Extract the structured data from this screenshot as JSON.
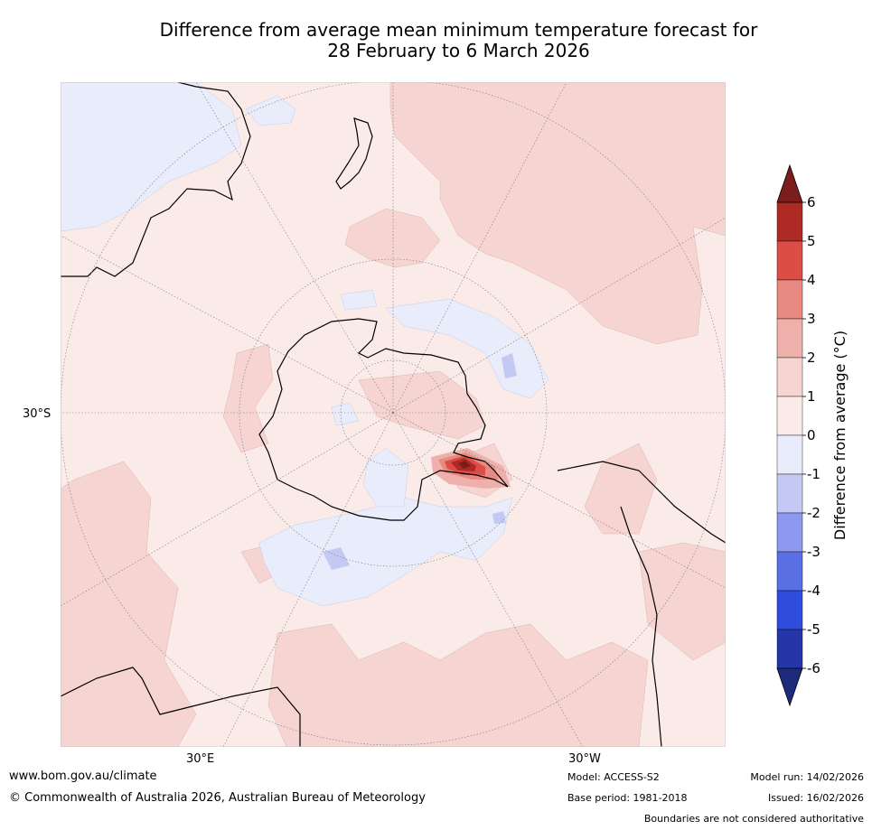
{
  "header": {
    "title_line1": "Difference from average mean minimum temperature forecast for",
    "title_line2": "28 February to 6 March 2026"
  },
  "map": {
    "projection": "south-polar-stereographic",
    "lat_label": "30°S",
    "lon_label_left": "30°E",
    "lon_label_right": "30°W",
    "colors": {
      "bin_0_1": "#fbebe8",
      "bin_1_2": "#f5d4d1",
      "bin_2_3": "#eeb0aa",
      "bin_3_4": "#e88a82",
      "bin_4_5": "#dc4e45",
      "bin_5_6": "#ad2a25",
      "bin_gt6": "#7b1d1b",
      "bin_m1_0": "#e8ecfb",
      "bin_m2_m1": "#c3c9f3",
      "land": "#000000",
      "graticule": "#888888"
    }
  },
  "colorbar": {
    "label": "Difference from average (°C)",
    "ticks": [
      "6",
      "5",
      "4",
      "3",
      "2",
      "1",
      "0",
      "-1",
      "-2",
      "-3",
      "-4",
      "-5",
      "-6"
    ],
    "bins": [
      {
        "range": "5 to 6",
        "color": "#ad2a25"
      },
      {
        "range": "4 to 5",
        "color": "#dc4e45"
      },
      {
        "range": "3 to 4",
        "color": "#e88a82"
      },
      {
        "range": "2 to 3",
        "color": "#eeb0aa"
      },
      {
        "range": "1 to 2",
        "color": "#f5d4d1"
      },
      {
        "range": "0 to 1",
        "color": "#fbebe8"
      },
      {
        "range": "-1 to 0",
        "color": "#e8ecfb"
      },
      {
        "range": "-2 to -1",
        "color": "#c3c9f3"
      },
      {
        "range": "-3 to -2",
        "color": "#8c99ee"
      },
      {
        "range": "-4 to -3",
        "color": "#5a6fe4"
      },
      {
        "range": "-5 to -4",
        "color": "#2f4ddd"
      },
      {
        "range": "-6 to -5",
        "color": "#2536a8"
      }
    ],
    "over_color": "#7b1d1b",
    "under_color": "#1e2a7c"
  },
  "footer": {
    "website": "www.bom.gov.au/climate",
    "copyright": "© Commonwealth of Australia 2026, Australian Bureau of Meteorology",
    "model": "Model: ACCESS-S2",
    "base_period": "Base period: 1981-2018",
    "model_run": "Model run: 14/02/2026",
    "issued": "Issued: 16/02/2026",
    "disclaimer": "Boundaries are not considered authoritative"
  }
}
